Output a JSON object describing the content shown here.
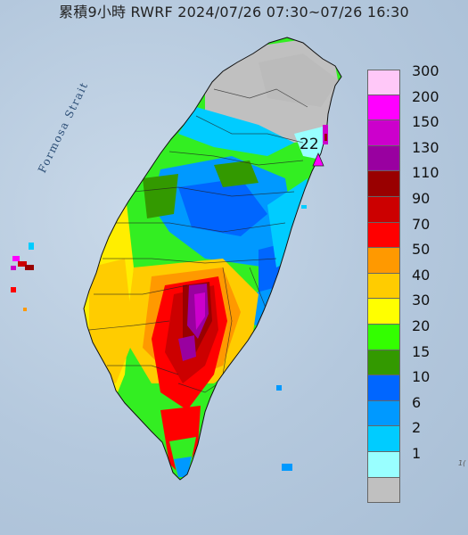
{
  "title": "累積9小時 RWRF 2024/07/26 07:30~07/26 16:30",
  "strait_label": "Formosa Strait",
  "max_marker": {
    "value": "22"
  },
  "edge_label": "1(",
  "legend": [
    {
      "label": "300",
      "color": "#ffc8f8"
    },
    {
      "label": "200",
      "color": "#ff00ff"
    },
    {
      "label": "150",
      "color": "#cc00cc"
    },
    {
      "label": "130",
      "color": "#9900a0"
    },
    {
      "label": "110",
      "color": "#990000"
    },
    {
      "label": "90",
      "color": "#cc0000"
    },
    {
      "label": "70",
      "color": "#ff0000"
    },
    {
      "label": "50",
      "color": "#ff9900"
    },
    {
      "label": "40",
      "color": "#ffcc00"
    },
    {
      "label": "30",
      "color": "#ffff00"
    },
    {
      "label": "20",
      "color": "#33ff00"
    },
    {
      "label": "15",
      "color": "#339900"
    },
    {
      "label": "10",
      "color": "#0066ff"
    },
    {
      "label": "6",
      "color": "#0099ff"
    },
    {
      "label": "2",
      "color": "#00ccff"
    },
    {
      "label": "1",
      "color": "#99ffff"
    },
    {
      "label": "",
      "color": "#c0c0c0"
    }
  ]
}
